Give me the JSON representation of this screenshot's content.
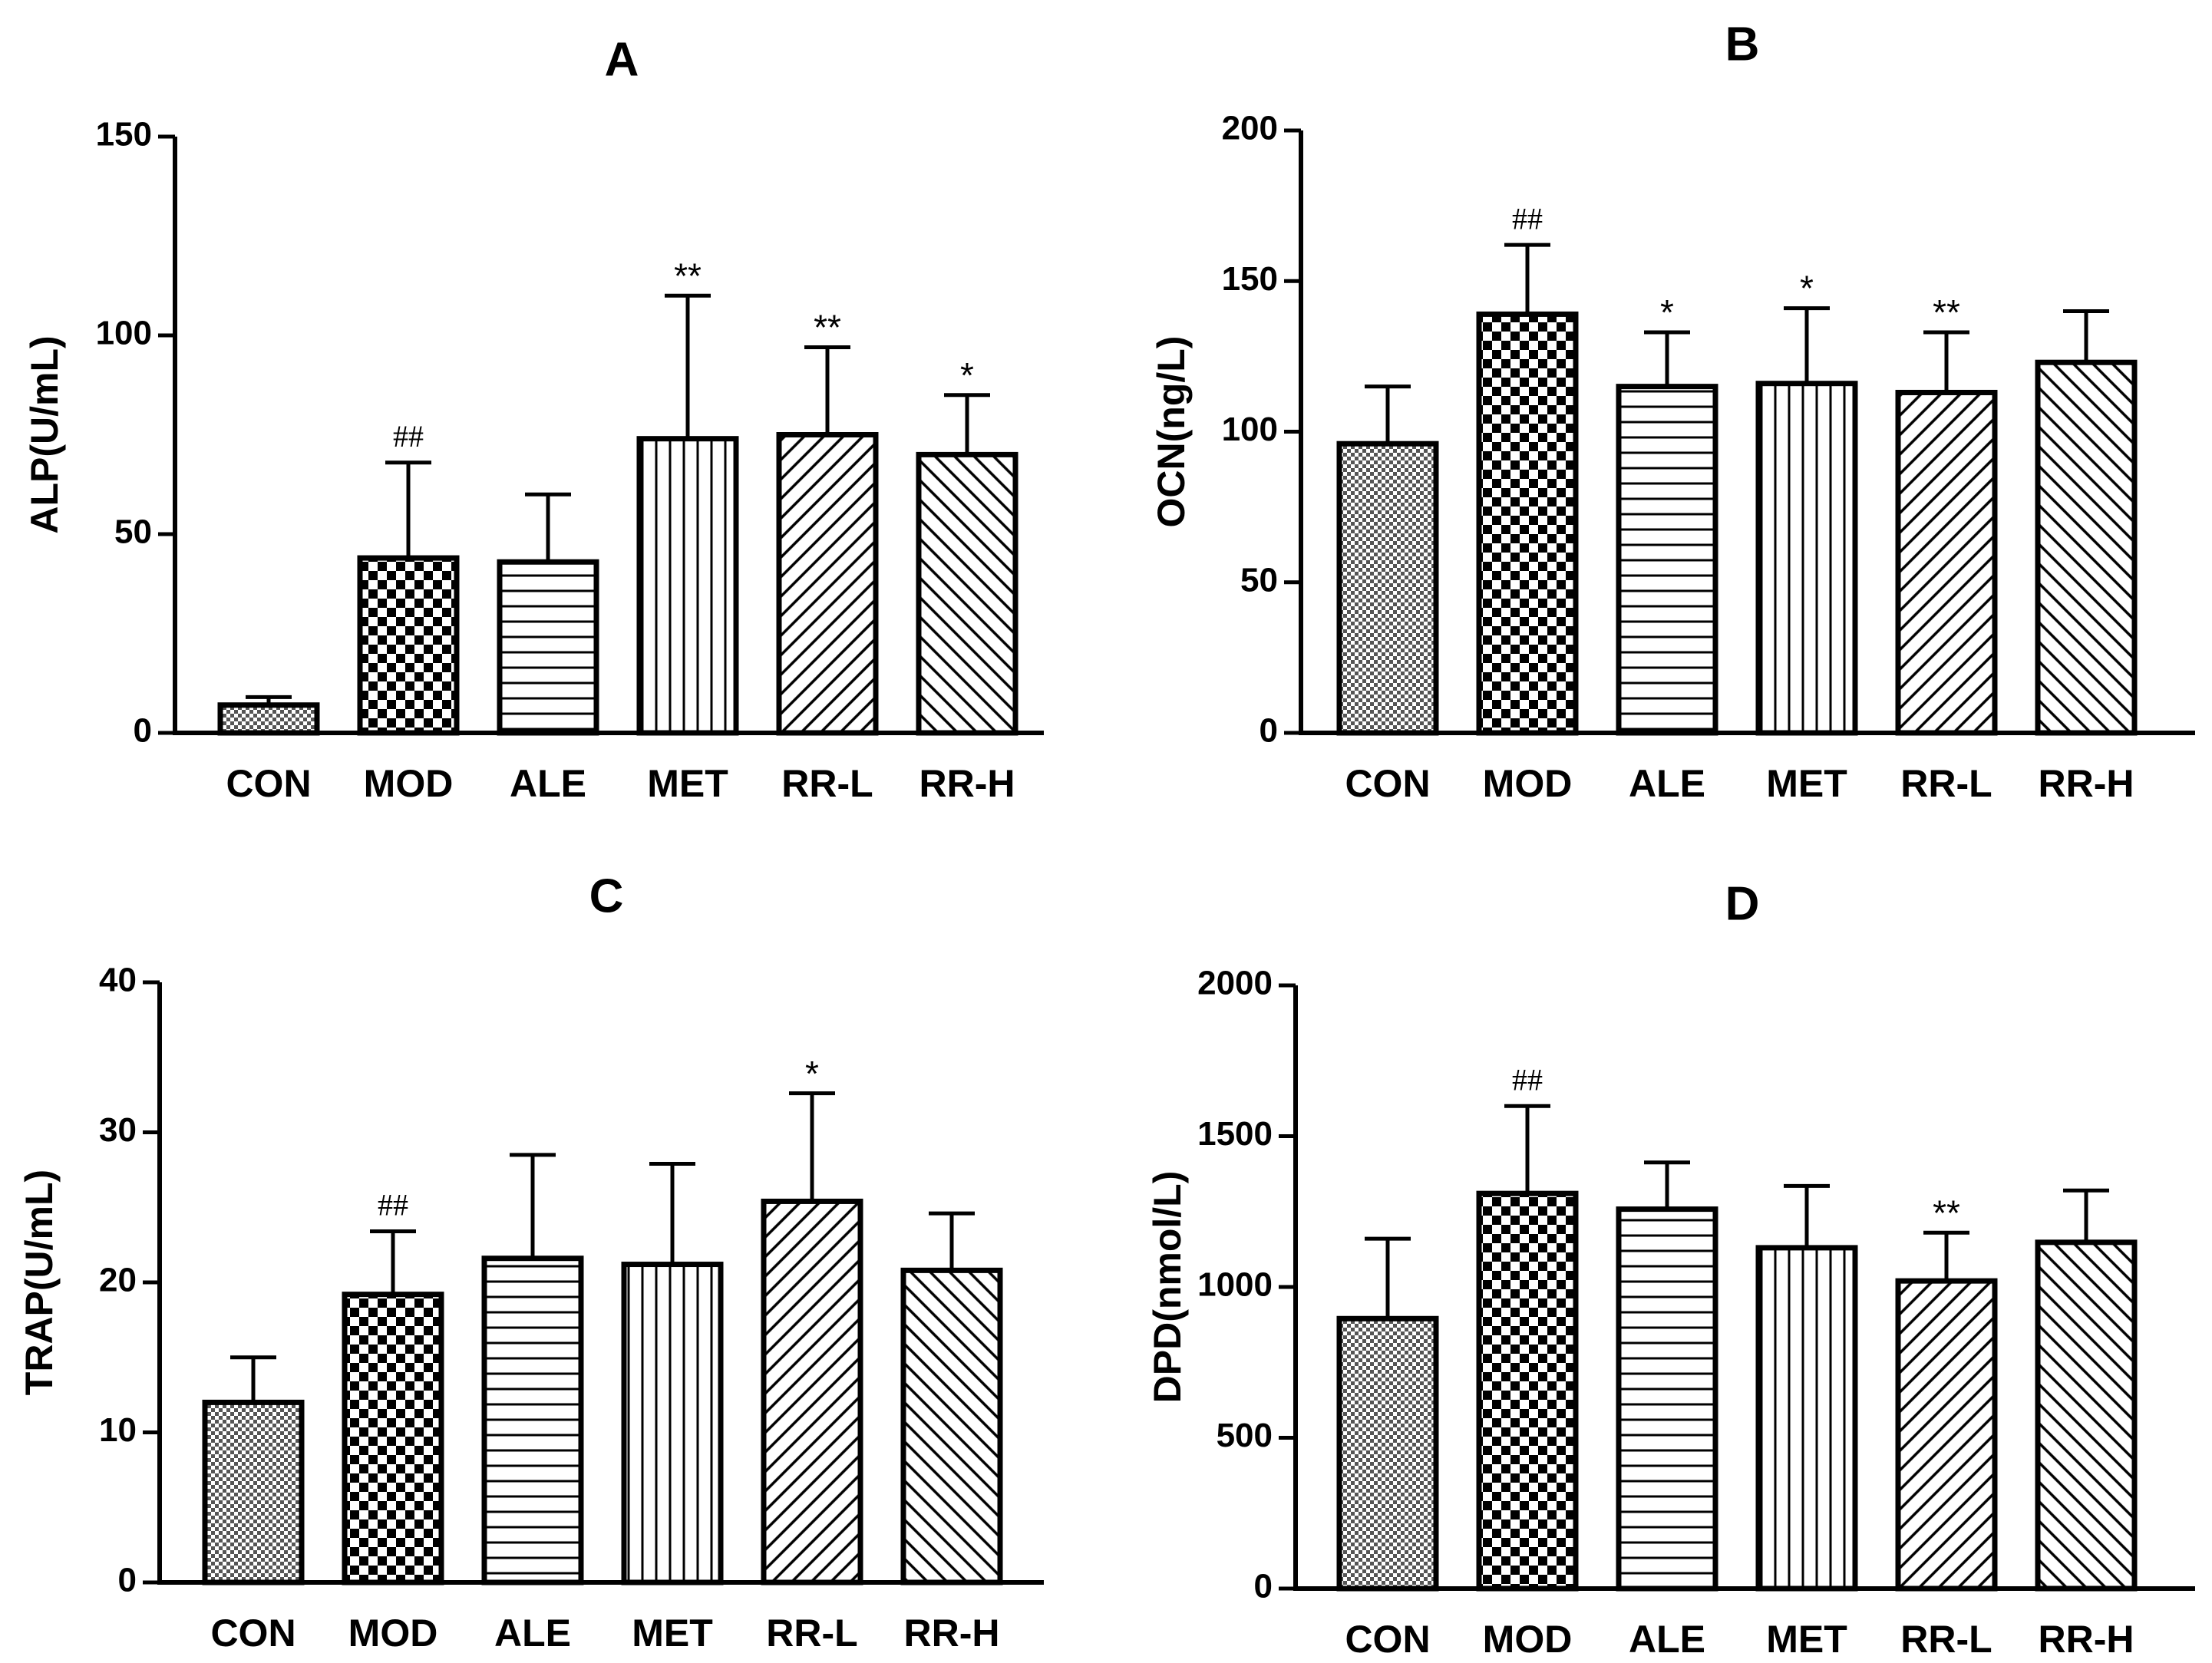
{
  "chart_data": [
    {
      "type": "bar",
      "title": "A",
      "ylabel": "ALP(U/mL)",
      "xlabel": "",
      "ylim": [
        0,
        150
      ],
      "yticks": [
        0,
        50,
        100,
        150
      ],
      "categories": [
        "CON",
        "MOD",
        "ALE",
        "MET",
        "RR-L",
        "RR-H"
      ],
      "values": [
        7,
        44,
        43,
        74,
        75,
        70
      ],
      "errors": [
        2,
        24,
        17,
        36,
        22,
        15
      ],
      "significance": [
        "",
        "##",
        "",
        "**",
        "**",
        "*"
      ]
    },
    {
      "type": "bar",
      "title": "B",
      "ylabel": "OCN(ng/L)",
      "xlabel": "",
      "ylim": [
        0,
        200
      ],
      "yticks": [
        0,
        50,
        100,
        150,
        200
      ],
      "categories": [
        "CON",
        "MOD",
        "ALE",
        "MET",
        "RR-L",
        "RR-H"
      ],
      "values": [
        96,
        139,
        115,
        116,
        113,
        123
      ],
      "errors": [
        19,
        23,
        18,
        25,
        20,
        17
      ],
      "significance": [
        "",
        "##",
        "*",
        "*",
        "**",
        ""
      ]
    },
    {
      "type": "bar",
      "title": "C",
      "ylabel": "TRAP(U/mL)",
      "xlabel": "",
      "ylim": [
        0,
        40
      ],
      "yticks": [
        0,
        10,
        20,
        30,
        40
      ],
      "categories": [
        "CON",
        "MOD",
        "ALE",
        "MET",
        "RR-L",
        "RR-H"
      ],
      "values": [
        12,
        19.2,
        21.6,
        21.2,
        25.4,
        20.8
      ],
      "errors": [
        3,
        4.2,
        6.9,
        6.7,
        7.2,
        3.8
      ],
      "significance": [
        "",
        "##",
        "",
        "",
        "*",
        ""
      ]
    },
    {
      "type": "bar",
      "title": "D",
      "ylabel": "DPD(nmol/L)",
      "xlabel": "",
      "ylim": [
        0,
        2000
      ],
      "yticks": [
        0,
        500,
        1000,
        1500,
        2000
      ],
      "categories": [
        "CON",
        "MOD",
        "ALE",
        "MET",
        "RR-L",
        "RR-H"
      ],
      "values": [
        895,
        1310,
        1258,
        1130,
        1020,
        1148
      ],
      "errors": [
        265,
        290,
        155,
        205,
        160,
        172
      ],
      "significance": [
        "",
        "##",
        "",
        "",
        "**",
        ""
      ]
    }
  ]
}
